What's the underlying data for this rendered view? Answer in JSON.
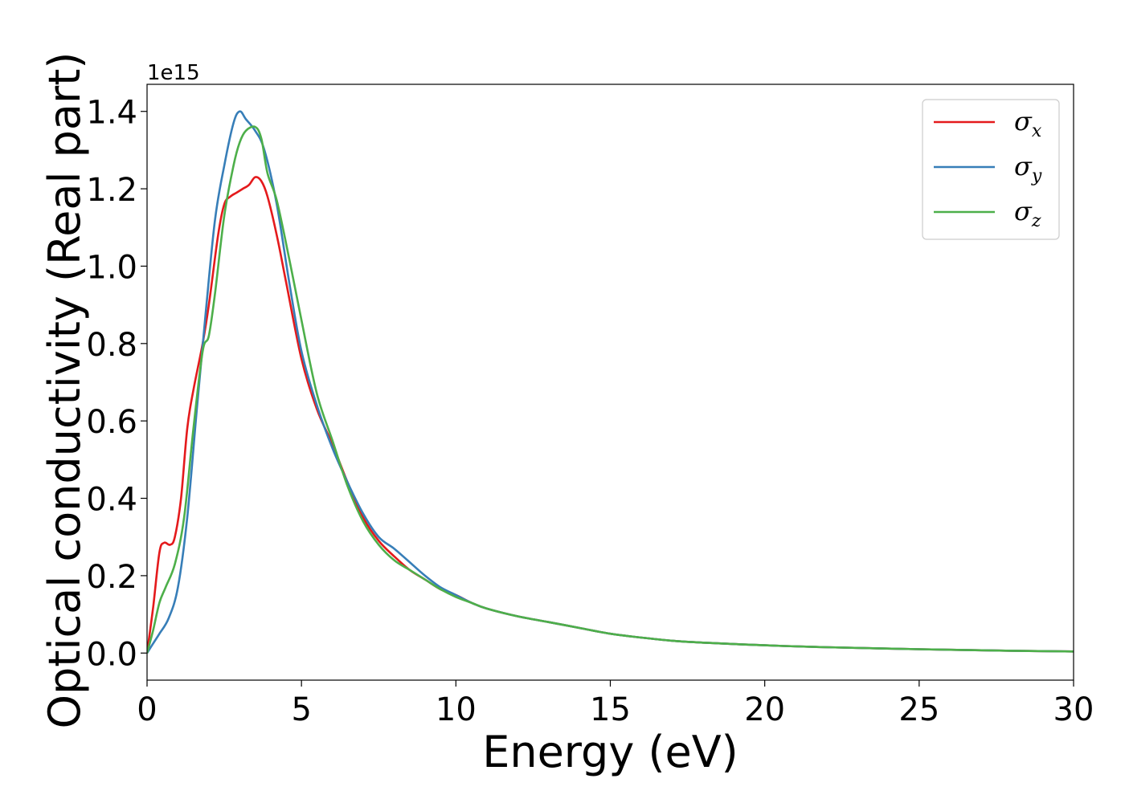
{
  "chart_data": {
    "type": "line",
    "title": "",
    "xlabel": "Energy (eV)",
    "ylabel": "Optical conductivity (Real part)",
    "y_offset_label": "1e15",
    "xlim": [
      0,
      30
    ],
    "ylim": [
      -0.07,
      1.47
    ],
    "y_scale_factor": 1000000000000000.0,
    "x_ticks": [
      0,
      5,
      10,
      15,
      20,
      25,
      30
    ],
    "x_tick_labels": [
      "0",
      "5",
      "10",
      "15",
      "20",
      "25",
      "30"
    ],
    "y_ticks": [
      0.0,
      0.2,
      0.4,
      0.6,
      0.8,
      1.0,
      1.2,
      1.4
    ],
    "y_tick_labels": [
      "0.0",
      "0.2",
      "0.4",
      "0.6",
      "0.8",
      "1.0",
      "1.2",
      "1.4"
    ],
    "grid": false,
    "legend_position": "top-right",
    "series": [
      {
        "name": "σ",
        "subscript": "x",
        "color": "#e41a1c",
        "x": [
          0,
          0.2,
          0.4,
          0.55,
          0.75,
          0.9,
          1.1,
          1.3,
          1.5,
          1.8,
          2.0,
          2.3,
          2.5,
          2.7,
          2.9,
          3.1,
          3.3,
          3.5,
          3.7,
          3.9,
          4.2,
          4.5,
          5.0,
          5.5,
          6.0,
          6.5,
          7.0,
          7.5,
          8.0,
          8.5,
          9.0,
          9.5,
          10,
          10.5,
          11,
          12,
          13,
          14,
          15,
          16,
          17,
          18,
          20,
          22,
          25,
          28,
          30
        ],
        "y": [
          0,
          0.12,
          0.26,
          0.285,
          0.28,
          0.3,
          0.4,
          0.58,
          0.68,
          0.8,
          0.9,
          1.08,
          1.16,
          1.18,
          1.19,
          1.2,
          1.21,
          1.23,
          1.22,
          1.18,
          1.08,
          0.96,
          0.76,
          0.63,
          0.54,
          0.44,
          0.35,
          0.29,
          0.25,
          0.215,
          0.19,
          0.165,
          0.15,
          0.13,
          0.115,
          0.095,
          0.08,
          0.065,
          0.05,
          0.04,
          0.032,
          0.027,
          0.02,
          0.015,
          0.01,
          0.006,
          0.004
        ]
      },
      {
        "name": "σ",
        "subscript": "y",
        "color": "#377eb8",
        "x": [
          0,
          0.2,
          0.4,
          0.7,
          1.0,
          1.3,
          1.6,
          1.9,
          2.2,
          2.5,
          2.8,
          3.0,
          3.2,
          3.5,
          3.8,
          4.2,
          4.6,
          5.0,
          5.5,
          6.0,
          6.5,
          7.0,
          7.5,
          8.0,
          8.5,
          9.0,
          9.5,
          10,
          10.5,
          11,
          12,
          13,
          14,
          15,
          16,
          17,
          18,
          20,
          22,
          25,
          28,
          30
        ],
        "y": [
          0,
          0.025,
          0.05,
          0.09,
          0.17,
          0.35,
          0.62,
          0.88,
          1.12,
          1.26,
          1.37,
          1.4,
          1.38,
          1.35,
          1.3,
          1.16,
          0.96,
          0.78,
          0.64,
          0.53,
          0.44,
          0.36,
          0.3,
          0.27,
          0.235,
          0.2,
          0.17,
          0.15,
          0.13,
          0.115,
          0.095,
          0.08,
          0.065,
          0.05,
          0.04,
          0.032,
          0.027,
          0.02,
          0.015,
          0.01,
          0.006,
          0.004
        ]
      },
      {
        "name": "σ",
        "subscript": "z",
        "color": "#4daf4a",
        "x": [
          0,
          0.2,
          0.4,
          0.6,
          0.9,
          1.2,
          1.5,
          1.8,
          2.0,
          2.2,
          2.5,
          2.8,
          3.0,
          3.2,
          3.5,
          3.7,
          3.9,
          4.2,
          4.6,
          5.0,
          5.5,
          6.0,
          6.5,
          7.0,
          7.5,
          8.0,
          8.5,
          9.0,
          9.5,
          10,
          10.5,
          11,
          12,
          13,
          14,
          15,
          16,
          17,
          18,
          20,
          22,
          25,
          28,
          30
        ],
        "y": [
          0,
          0.06,
          0.13,
          0.17,
          0.23,
          0.35,
          0.58,
          0.78,
          0.82,
          0.93,
          1.13,
          1.26,
          1.32,
          1.35,
          1.36,
          1.33,
          1.24,
          1.17,
          1.02,
          0.86,
          0.67,
          0.55,
          0.43,
          0.34,
          0.28,
          0.24,
          0.215,
          0.19,
          0.165,
          0.145,
          0.13,
          0.115,
          0.095,
          0.08,
          0.065,
          0.05,
          0.04,
          0.032,
          0.027,
          0.02,
          0.015,
          0.01,
          0.006,
          0.004
        ]
      }
    ]
  }
}
